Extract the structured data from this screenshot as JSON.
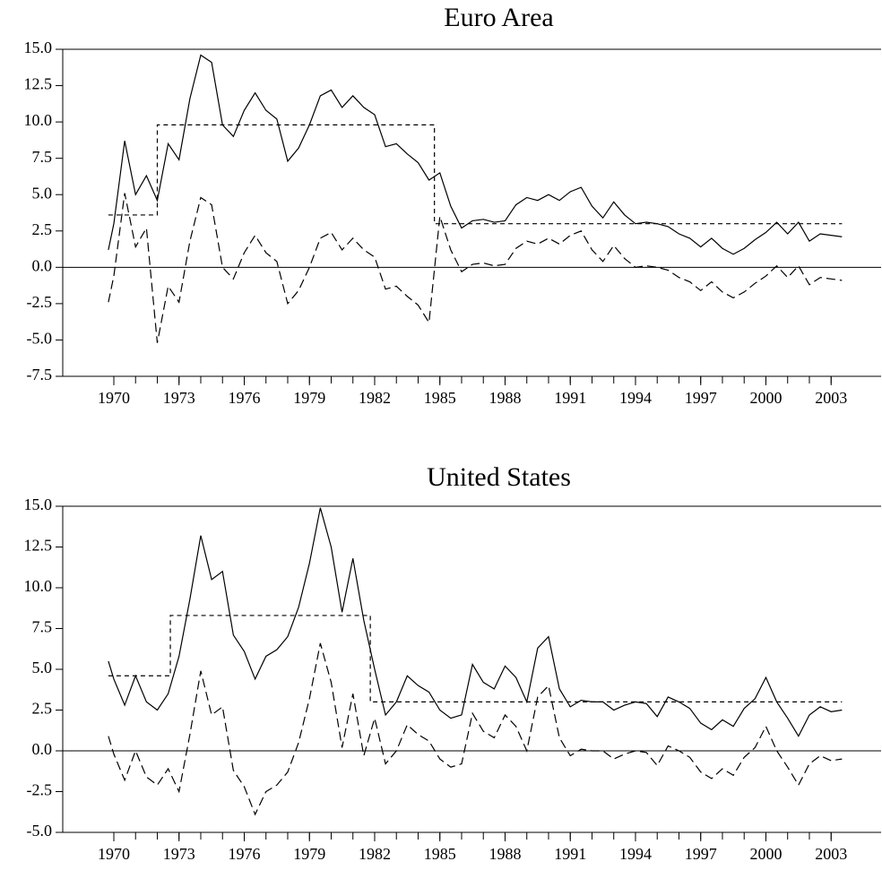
{
  "chart_data": [
    {
      "type": "line",
      "title": "Euro Area",
      "xlim": [
        1967.65,
        2005.3
      ],
      "xticks": [
        1970,
        1973,
        1976,
        1979,
        1982,
        1985,
        1988,
        1991,
        1994,
        1997,
        2000,
        2003
      ],
      "xminorticks": [
        1970,
        1971,
        1972,
        1973,
        1974,
        1975,
        1976,
        1977,
        1978,
        1979,
        1980,
        1981,
        1982,
        1983,
        1984,
        1985,
        1986,
        1987,
        1988,
        1989,
        1990,
        1991,
        1992,
        1993,
        1994,
        1995,
        1996,
        1997,
        1998,
        1999,
        2000,
        2001,
        2002,
        2003
      ],
      "ylim": [
        -7.5,
        15
      ],
      "yticks": [
        {
          "value": -7.5,
          "label": "-7.5"
        },
        {
          "value": -5,
          "label": "-5.0"
        },
        {
          "value": -2.5,
          "label": "-2.5"
        },
        {
          "value": 0,
          "label": "0.0"
        },
        {
          "value": 2.5,
          "label": "2.5"
        },
        {
          "value": 5,
          "label": "5.0"
        },
        {
          "value": 7.5,
          "label": "7.5"
        },
        {
          "value": 10,
          "label": "10.0"
        },
        {
          "value": 12.5,
          "label": "12.5"
        },
        {
          "value": 15,
          "label": "15.0"
        }
      ],
      "hline": 0,
      "series": [
        {
          "color": "#000000",
          "dash": "none",
          "x": [
            1969.75,
            1970,
            1970.5,
            1971,
            1971.5,
            1972,
            1972.5,
            1973,
            1973.5,
            1974,
            1974.5,
            1975,
            1975.5,
            1976,
            1976.5,
            1977,
            1977.5,
            1978,
            1978.5,
            1979,
            1979.5,
            1980,
            1980.5,
            1981,
            1981.5,
            1982,
            1982.5,
            1983,
            1983.5,
            1984,
            1984.5,
            1985,
            1985.5,
            1986,
            1986.5,
            1987,
            1987.5,
            1988,
            1988.5,
            1989,
            1989.5,
            1990,
            1990.5,
            1991,
            1991.5,
            1992,
            1992.5,
            1993,
            1993.5,
            1994,
            1994.5,
            1995,
            1995.5,
            1996,
            1996.5,
            1997,
            1997.5,
            1998,
            1998.5,
            1999,
            1999.5,
            2000,
            2000.5,
            2001,
            2001.5,
            2002,
            2002.5,
            2003,
            2003.5
          ],
          "values": [
            1.2,
            3.0,
            8.7,
            5.0,
            6.3,
            4.6,
            8.5,
            7.4,
            11.6,
            14.6,
            14.1,
            9.8,
            9.0,
            10.8,
            12.0,
            10.8,
            10.2,
            7.3,
            8.2,
            9.8,
            11.8,
            12.2,
            11.0,
            11.8,
            11.0,
            10.5,
            8.3,
            8.5,
            7.8,
            7.2,
            6.0,
            6.5,
            4.2,
            2.7,
            3.2,
            3.3,
            3.1,
            3.2,
            4.3,
            4.8,
            4.6,
            5.0,
            4.6,
            5.2,
            5.5,
            4.2,
            3.4,
            4.5,
            3.6,
            3.0,
            3.1,
            3.0,
            2.8,
            2.3,
            2.0,
            1.4,
            2.0,
            1.3,
            0.9,
            1.3,
            1.9,
            2.4,
            3.1,
            2.3,
            3.1,
            1.8,
            2.3,
            2.2,
            2.1
          ]
        },
        {
          "color": "#000000",
          "dash": "5,4",
          "x": [
            1969.75,
            1972.0,
            1972.0,
            1984.75,
            1984.75,
            2003.5
          ],
          "values": [
            3.6,
            3.6,
            9.8,
            9.8,
            3.0,
            3.0
          ]
        },
        {
          "color": "#000000",
          "dash": "10,5",
          "x": [
            1969.75,
            1970,
            1970.5,
            1971,
            1971.5,
            1972,
            1972.5,
            1973,
            1973.5,
            1974,
            1974.5,
            1975,
            1975.5,
            1976,
            1976.5,
            1977,
            1977.5,
            1978,
            1978.5,
            1979,
            1979.5,
            1980,
            1980.5,
            1981,
            1981.5,
            1982,
            1982.5,
            1983,
            1983.5,
            1984,
            1984.5,
            1985,
            1985.5,
            1986,
            1986.5,
            1987,
            1987.5,
            1988,
            1988.5,
            1989,
            1989.5,
            1990,
            1990.5,
            1991,
            1991.5,
            1992,
            1992.5,
            1993,
            1993.5,
            1994,
            1994.5,
            1995,
            1995.5,
            1996,
            1996.5,
            1997,
            1997.5,
            1998,
            1998.5,
            1999,
            1999.5,
            2000,
            2000.5,
            2001,
            2001.5,
            2002,
            2002.5,
            2003,
            2003.5
          ],
          "values": [
            -2.4,
            -0.6,
            5.1,
            1.4,
            2.7,
            -5.2,
            -1.3,
            -2.4,
            1.8,
            4.8,
            4.3,
            0.0,
            -0.8,
            1.0,
            2.2,
            1.0,
            0.4,
            -2.5,
            -1.6,
            0.0,
            2.0,
            2.4,
            1.2,
            2.0,
            1.2,
            0.7,
            -1.5,
            -1.3,
            -2.0,
            -2.6,
            -3.8,
            3.5,
            1.2,
            -0.3,
            0.2,
            0.3,
            0.1,
            0.2,
            1.3,
            1.8,
            1.6,
            2.0,
            1.6,
            2.2,
            2.5,
            1.2,
            0.4,
            1.5,
            0.6,
            0.0,
            0.1,
            0.0,
            -0.2,
            -0.7,
            -1.0,
            -1.6,
            -1.0,
            -1.7,
            -2.1,
            -1.7,
            -1.1,
            -0.6,
            0.1,
            -0.7,
            0.1,
            -1.2,
            -0.7,
            -0.8,
            -0.9
          ]
        }
      ]
    },
    {
      "type": "line",
      "title": "United States",
      "xlim": [
        1967.65,
        2005.3
      ],
      "xticks": [
        1970,
        1973,
        1976,
        1979,
        1982,
        1985,
        1988,
        1991,
        1994,
        1997,
        2000,
        2003
      ],
      "xminorticks": [
        1970,
        1971,
        1972,
        1973,
        1974,
        1975,
        1976,
        1977,
        1978,
        1979,
        1980,
        1981,
        1982,
        1983,
        1984,
        1985,
        1986,
        1987,
        1988,
        1989,
        1990,
        1991,
        1992,
        1993,
        1994,
        1995,
        1996,
        1997,
        1998,
        1999,
        2000,
        2001,
        2002,
        2003
      ],
      "ylim": [
        -5,
        15
      ],
      "yticks": [
        {
          "value": -5,
          "label": "-5.0"
        },
        {
          "value": -2.5,
          "label": "-2.5"
        },
        {
          "value": 0,
          "label": "0.0"
        },
        {
          "value": 2.5,
          "label": "2.5"
        },
        {
          "value": 5,
          "label": "5.0"
        },
        {
          "value": 7.5,
          "label": "7.5"
        },
        {
          "value": 10,
          "label": "10.0"
        },
        {
          "value": 12.5,
          "label": "12.5"
        },
        {
          "value": 15,
          "label": "15.0"
        }
      ],
      "hline": 0,
      "series": [
        {
          "color": "#000000",
          "dash": "none",
          "x": [
            1969.75,
            1970,
            1970.5,
            1971,
            1971.5,
            1972,
            1972.5,
            1973,
            1973.5,
            1974,
            1974.5,
            1975,
            1975.5,
            1976,
            1976.5,
            1977,
            1977.5,
            1978,
            1978.5,
            1979,
            1979.5,
            1980,
            1980.5,
            1981,
            1981.5,
            1982,
            1982.5,
            1983,
            1983.5,
            1984,
            1984.5,
            1985,
            1985.5,
            1986,
            1986.5,
            1987,
            1987.5,
            1988,
            1988.5,
            1989,
            1989.5,
            1990,
            1990.5,
            1991,
            1991.5,
            1992,
            1992.5,
            1993,
            1993.5,
            1994,
            1994.5,
            1995,
            1995.5,
            1996,
            1996.5,
            1997,
            1997.5,
            1998,
            1998.5,
            1999,
            1999.5,
            2000,
            2000.5,
            2001,
            2001.5,
            2002,
            2002.5,
            2003,
            2003.5
          ],
          "values": [
            5.5,
            4.4,
            2.8,
            4.6,
            3.0,
            2.5,
            3.5,
            5.8,
            9.3,
            13.2,
            10.5,
            11.0,
            7.1,
            6.1,
            4.4,
            5.8,
            6.2,
            7.0,
            8.8,
            11.5,
            14.9,
            12.5,
            8.5,
            11.8,
            8.0,
            5.0,
            2.2,
            3.0,
            4.6,
            4.0,
            3.6,
            2.5,
            2.0,
            2.2,
            5.3,
            4.2,
            3.8,
            5.2,
            4.5,
            3.0,
            6.3,
            7.0,
            3.8,
            2.7,
            3.1,
            3.0,
            3.0,
            2.5,
            2.8,
            3.0,
            2.9,
            2.1,
            3.3,
            3.0,
            2.6,
            1.7,
            1.3,
            1.9,
            1.5,
            2.6,
            3.2,
            4.5,
            3.0,
            2.0,
            0.9,
            2.2,
            2.7,
            2.4,
            2.5
          ]
        },
        {
          "color": "#000000",
          "dash": "5,4",
          "x": [
            1969.75,
            1972.6,
            1972.6,
            1981.8,
            1981.8,
            2003.5
          ],
          "values": [
            4.6,
            4.6,
            8.3,
            8.3,
            3.0,
            3.0
          ]
        },
        {
          "color": "#000000",
          "dash": "10,5",
          "x": [
            1969.75,
            1970,
            1970.5,
            1971,
            1971.5,
            1972,
            1972.5,
            1973,
            1973.5,
            1974,
            1974.5,
            1975,
            1975.5,
            1976,
            1976.5,
            1977,
            1977.5,
            1978,
            1978.5,
            1979,
            1979.5,
            1980,
            1980.5,
            1981,
            1981.5,
            1982,
            1982.5,
            1983,
            1983.5,
            1984,
            1984.5,
            1985,
            1985.5,
            1986,
            1986.5,
            1987,
            1987.5,
            1988,
            1988.5,
            1989,
            1989.5,
            1990,
            1990.5,
            1991,
            1991.5,
            1992,
            1992.5,
            1993,
            1993.5,
            1994,
            1994.5,
            1995,
            1995.5,
            1996,
            1996.5,
            1997,
            1997.5,
            1998,
            1998.5,
            1999,
            1999.5,
            2000,
            2000.5,
            2001,
            2001.5,
            2002,
            2002.5,
            2003,
            2003.5
          ],
          "values": [
            0.9,
            -0.2,
            -1.8,
            0.0,
            -1.6,
            -2.1,
            -1.1,
            -2.5,
            1.0,
            4.9,
            2.2,
            2.7,
            -1.2,
            -2.2,
            -3.9,
            -2.5,
            -2.1,
            -1.3,
            0.5,
            3.2,
            6.6,
            4.2,
            0.2,
            3.5,
            -0.3,
            2.0,
            -0.8,
            0.0,
            1.6,
            1.0,
            0.6,
            -0.5,
            -1.0,
            -0.8,
            2.3,
            1.2,
            0.8,
            2.2,
            1.5,
            0.0,
            3.3,
            4.0,
            0.8,
            -0.3,
            0.1,
            0.0,
            0.0,
            -0.5,
            -0.2,
            0.0,
            -0.1,
            -0.9,
            0.3,
            0.0,
            -0.4,
            -1.3,
            -1.7,
            -1.1,
            -1.5,
            -0.4,
            0.2,
            1.5,
            0.0,
            -1.0,
            -2.1,
            -0.8,
            -0.3,
            -0.6,
            -0.5
          ]
        }
      ]
    }
  ]
}
